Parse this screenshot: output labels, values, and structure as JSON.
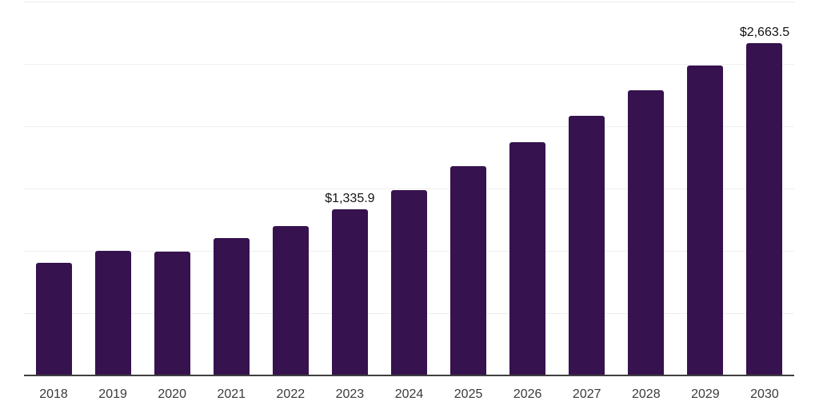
{
  "chart": {
    "background_color": "#ffffff",
    "bar_color": "#36124e",
    "grid_color": "#eeeeee",
    "axis_color": "#3f3f3f",
    "tick_label_color": "#3a3a3a",
    "value_label_color": "#131313"
  },
  "chart_data": {
    "type": "bar",
    "title": "",
    "xlabel": "",
    "ylabel": "",
    "categories": [
      "2018",
      "2019",
      "2020",
      "2021",
      "2022",
      "2023",
      "2024",
      "2025",
      "2026",
      "2027",
      "2028",
      "2029",
      "2030"
    ],
    "values": [
      905,
      1000,
      995,
      1100,
      1200,
      1335.9,
      1490,
      1680,
      1875,
      2085,
      2290,
      2485,
      2663.5
    ],
    "value_labels": [
      "",
      "",
      "",
      "",
      "",
      "$1,335.9",
      "",
      "",
      "",
      "",
      "",
      "",
      "$2,663.5"
    ],
    "ylim": [
      0,
      3000
    ],
    "gridline_step": 500,
    "grid": "horizontal",
    "legend_position": "none"
  }
}
